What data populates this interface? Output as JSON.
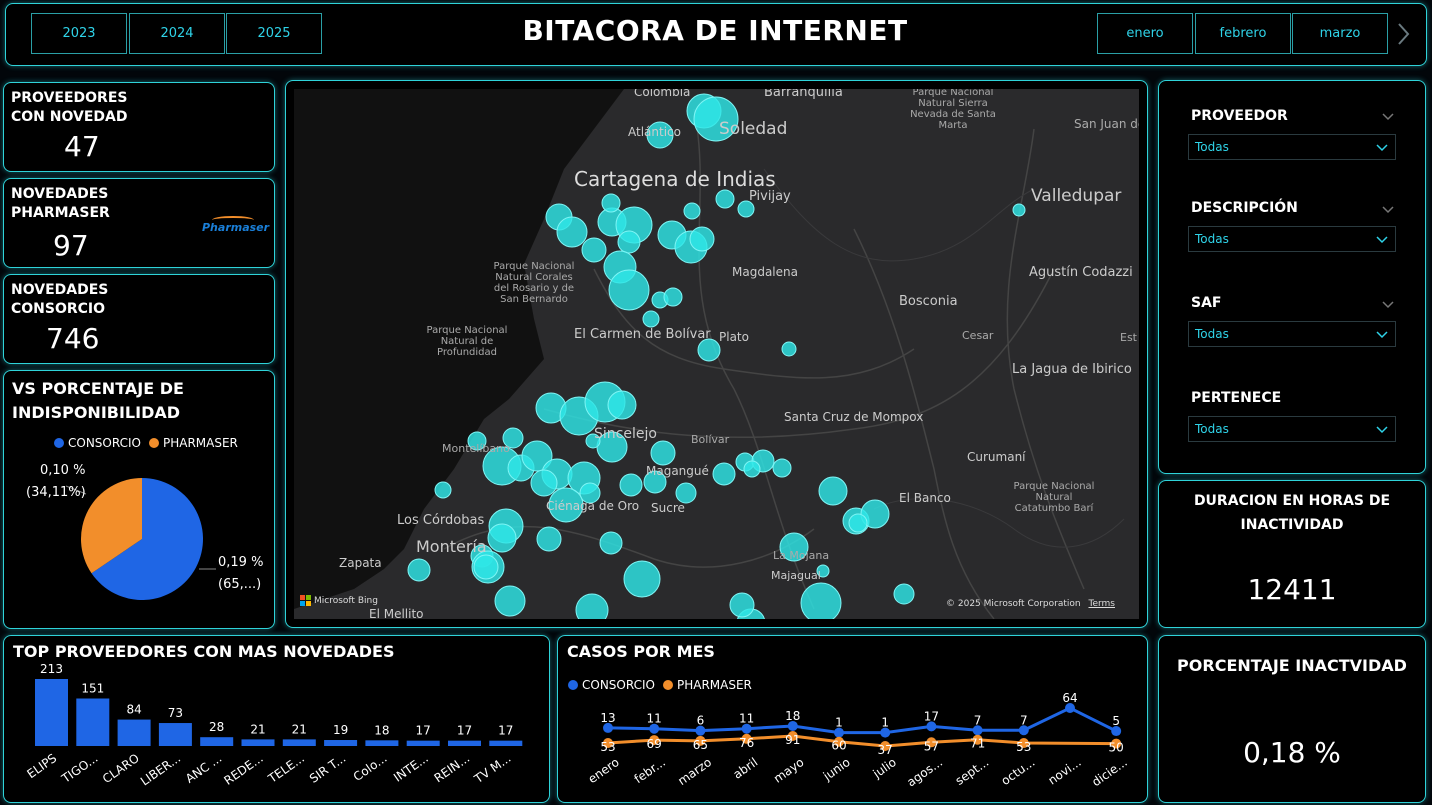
{
  "header": {
    "title": "BITACORA DE INTERNET",
    "years": [
      "2023",
      "2024",
      "2025"
    ],
    "months": [
      "enero",
      "febrero",
      "marzo"
    ]
  },
  "kpis": {
    "proveedores": {
      "label_line1": "PROVEEDORES",
      "label_line2": "CON NOVEDAD",
      "value": "47"
    },
    "pharmaser": {
      "label_line1": "NOVEDADES",
      "label_line2": "PHARMASER",
      "value": "97",
      "logo": "Pharmaser"
    },
    "consorcio": {
      "label_line1": "NOVEDADES",
      "label_line2": "CONSORCIO",
      "value": "746"
    }
  },
  "pie": {
    "title_line1": "VS PORCENTAJE DE",
    "title_line2": "INDISPONIBILIDAD",
    "legend": [
      "CONSORCIO",
      "PHARMASER"
    ],
    "label_pharmaser_1": "0,10 %",
    "label_pharmaser_2": "(34,11%)",
    "label_consorcio_1": "0,19 %",
    "label_consorcio_2": "(65,...)",
    "colors": {
      "consorcio": "#1f66e5",
      "pharmaser": "#f28e2b"
    }
  },
  "map": {
    "place_labels": [
      "Colombia",
      "Barranquilla",
      "Soledad",
      "Atlántico",
      "Cartagena de Indias",
      "Pivijay",
      "Magdalena",
      "Parque Nacional Natural Corales del Rosario y de San Bernardo",
      "Parque Nacional Natural de Profundidad",
      "El Carmen de Bolívar",
      "Plato",
      "Bosconia",
      "Cesar",
      "Valledupar",
      "Agustín Codazzi",
      "La Jagua de Ibirico",
      "Sincelejo",
      "Bolívar",
      "Montelíbano",
      "Magangué",
      "Santa Cruz de Mompox",
      "Curumaní",
      "Sucre",
      "Ciénaga de Oro",
      "Los Córdobas",
      "Montería",
      "La Mojana",
      "Majagual",
      "El Banco",
      "Zapata",
      "El Mellito",
      "Parque Nacional Natural Sierra Nevada de Santa Marta",
      "San Juan del Cesar",
      "Parque Nacional Natural Catatumbo Barí",
      "Est"
    ],
    "attribution": "© 2025 Microsoft Corporation",
    "terms": "Terms",
    "bing": "Microsoft Bing"
  },
  "slicers": [
    {
      "label": "PROVEEDOR",
      "value": "Todas"
    },
    {
      "label": "DESCRIPCIÓN",
      "value": "Todas"
    },
    {
      "label": "SAF",
      "value": "Todas"
    },
    {
      "label": "PERTENECE",
      "value": "Todas"
    }
  ],
  "duration": {
    "title_line1": "DURACION EN HORAS DE",
    "title_line2": "INACTIVIDAD",
    "value": "12411"
  },
  "percent": {
    "title": "PORCENTAJE INACTVIDAD",
    "value": "0,18 %"
  },
  "top_providers": {
    "title": "TOP PROVEEDORES CON MAS NOVEDADES",
    "bar_color": "#1f66e5"
  },
  "cases": {
    "title": "CASOS POR MES",
    "legend": [
      "CONSORCIO",
      "PHARMASER"
    ]
  },
  "chart_data": [
    {
      "type": "pie",
      "title": "VS PORCENTAJE DE INDISPONIBILIDAD",
      "categories": [
        "CONSORCIO",
        "PHARMASER"
      ],
      "values": [
        0.19,
        0.1
      ],
      "shares": [
        65.89,
        34.11
      ],
      "legend_position": "top"
    },
    {
      "type": "bar",
      "title": "TOP PROVEEDORES CON MAS NOVEDADES",
      "categories": [
        "ELIPS",
        "TIGO...",
        "CLARO",
        "LIBER...",
        "ANC ...",
        "REDE...",
        "TELE...",
        "SIR T...",
        "Colo...",
        "INTE...",
        "REIN...",
        "TV M..."
      ],
      "values": [
        213,
        151,
        84,
        73,
        28,
        21,
        21,
        19,
        18,
        17,
        17,
        17
      ],
      "ylim": [
        0,
        213
      ]
    },
    {
      "type": "line",
      "title": "CASOS POR MES",
      "categories": [
        "enero",
        "febr...",
        "marzo",
        "abril",
        "mayo",
        "junio",
        "julio",
        "agos...",
        "sept...",
        "octu...",
        "novi...",
        "dicie..."
      ],
      "series": [
        {
          "name": "CONSORCIO",
          "values": [
            13,
            11,
            6,
            11,
            18,
            1,
            1,
            17,
            7,
            7,
            64,
            5
          ],
          "labels": [
            "13",
            "11",
            "6",
            "11",
            "18",
            "1",
            "1",
            "17",
            "7",
            "7",
            "64",
            "5"
          ],
          "color": "#1f66e5"
        },
        {
          "name": "PHARMASER",
          "values": [
            53,
            69,
            65,
            76,
            91,
            60,
            37,
            57,
            71,
            53,
            null,
            50
          ],
          "labels": [
            "53",
            "69",
            "65",
            "76",
            "91",
            "60",
            "37",
            "57",
            "71",
            "53",
            "",
            "50"
          ],
          "color": "#f28e2b"
        }
      ],
      "legend_position": "top-left"
    }
  ]
}
